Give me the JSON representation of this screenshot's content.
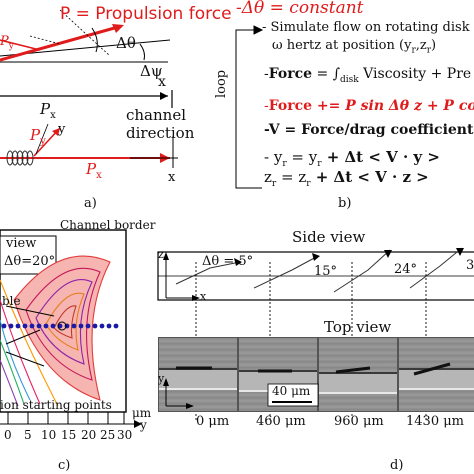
{
  "panel_a": {
    "propulsion_label": "P = Propulsion force",
    "delta_theta": "Δθ",
    "delta_psi": "Δψ",
    "x_label": "x",
    "px_label": "P",
    "px_sub": "x",
    "py_label": "P",
    "py_sub": "y",
    "channel_direction_1": "channel",
    "channel_direction_2": "direction",
    "y_label": "y",
    "p_label": "P",
    "p_sub": "y",
    "p_sub_partial": "y",
    "x2_label": "x",
    "caption": "a)"
  },
  "panel_b": {
    "title": "-Δθ = constant",
    "line1": "- Simulate flow on rotating disk",
    "line2": "ω hertz at position (y",
    "line2_r": "r",
    "line2_mid": ",z",
    "line2_end": ")",
    "force1_lead": "-",
    "force1_word": "Force",
    "force1_eq": " = ∫",
    "force1_sub": "disk",
    "force1_rest": " Viscosity + Pre",
    "force2_lead": "-",
    "force2_word": "Force",
    "force2_rest": " += P sin Δθ z + P cos",
    "v_line": "-V = Force/drag coefficient",
    "yr_line": "- y",
    "yr_rest": " = y",
    "yr_tail": " + Δt < V · y >",
    "zr_line": "  z",
    "zr_rest": " = z",
    "zr_tail": " + Δt < V · z >",
    "sub_r": "r",
    "loop_label": "loop",
    "caption": "b)"
  },
  "panel_c": {
    "channel_border": "Channel border",
    "view_label": "view",
    "delta_theta_box": "Δθ=20°",
    "partial_label": "ble",
    "starting_points": "ion starting points",
    "um_label": "μm",
    "x_ticks": [
      "0",
      "5",
      "10",
      "15",
      "20",
      "25",
      "30"
    ],
    "y_axis": "y",
    "caption": "c)"
  },
  "panel_d": {
    "side_view": "Side view",
    "top_view": "Top view",
    "dtheta_label": "Δθ = 5°",
    "angle_15": "15°",
    "angle_24": "24°",
    "angle_3": "3",
    "z_axis": "z",
    "x_axis": "x",
    "y_axis": "y",
    "scale_bar": "40 μm",
    "positions": [
      "0 μm",
      "460 μm",
      "960 μm",
      "1430 μm"
    ],
    "caption": "d)"
  }
}
